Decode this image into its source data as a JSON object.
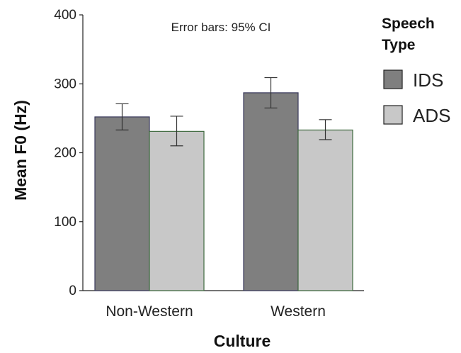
{
  "chart_data": {
    "type": "bar",
    "categories": [
      "Non-Western",
      "Western"
    ],
    "series": [
      {
        "name": "IDS",
        "values": [
          252,
          287
        ],
        "ci_low": [
          233,
          265
        ],
        "ci_high": [
          271,
          309
        ],
        "color": "#7f7f7f",
        "border": "#3a3a5c"
      },
      {
        "name": "ADS",
        "values": [
          231,
          233
        ],
        "ci_low": [
          210,
          219
        ],
        "ci_high": [
          253,
          248
        ],
        "color": "#c8c8c8",
        "border": "#3f6b3f"
      }
    ],
    "xlabel": "Culture",
    "ylabel": "Mean F0 (Hz)",
    "ylim": [
      0,
      400
    ],
    "yticks": [
      0,
      100,
      200,
      300,
      400
    ],
    "annotation": "Error bars: 95% CI",
    "legend": {
      "title_line1": "Speech",
      "title_line2": "Type",
      "position": "right"
    },
    "grid": false
  }
}
